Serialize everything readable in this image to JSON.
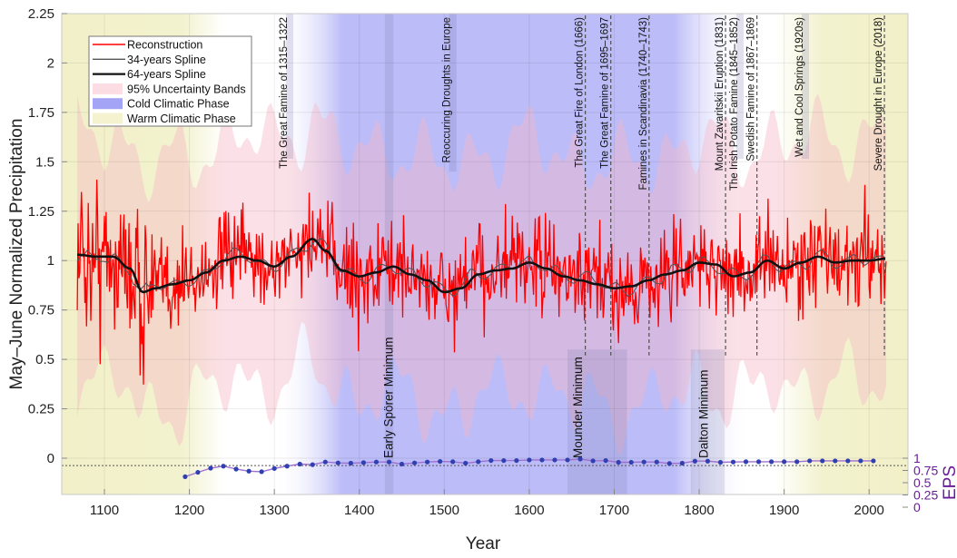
{
  "chart_data": {
    "type": "line",
    "title": "",
    "xlabel": "Year",
    "ylabel": "May–June Normalized Precipitation",
    "y2label": "EPS",
    "xlim": [
      1060,
      2055
    ],
    "ylim": [
      -0.18,
      2.25
    ],
    "y2lim": [
      0,
      1
    ],
    "grid": true,
    "x_ticks": [
      "1100",
      "1200",
      "1300",
      "1400",
      "1500",
      "1600",
      "1700",
      "1800",
      "1900",
      "2000"
    ],
    "y_ticks": [
      "2.25",
      "2",
      "1.75",
      "1.5",
      "1.25",
      "1",
      "0.75",
      "0.5",
      "0.25",
      "0"
    ],
    "y2_ticks": [
      "1",
      "0.75",
      "0.5",
      "0.25",
      "0"
    ],
    "legend": {
      "placement": "top-left",
      "entries": [
        {
          "label": "Reconstruction",
          "type": "line",
          "color": "#ff0000"
        },
        {
          "label": "34-years Spline",
          "type": "line",
          "color": "#555555"
        },
        {
          "label": "64-years Spline",
          "type": "line",
          "color": "#111111"
        },
        {
          "label": "95% Uncertainty Bands",
          "type": "patch",
          "color": "#fbdde3"
        },
        {
          "label": "Cold Climatic Phase",
          "type": "patch",
          "color": "#9a9af5"
        },
        {
          "label": "Warm Climatic Phase",
          "type": "patch",
          "color": "#f4f2cf"
        }
      ]
    },
    "phases": [
      {
        "kind": "warm",
        "start": 1060,
        "end": 1230
      },
      {
        "kind": "cold",
        "start": 1300,
        "end": 1850
      },
      {
        "kind": "warm",
        "start": 1920,
        "end": 2055
      }
    ],
    "events": [
      {
        "label": "The Great Famine of 1315–1322",
        "year": 1318,
        "style": "band"
      },
      {
        "label": "Reoccuring Droughts in Europe",
        "year": 1510,
        "style": "band"
      },
      {
        "label": "The Great Fire of London (1666)",
        "year": 1666,
        "style": "dashed"
      },
      {
        "label": "The Great Famine of 1695–1697",
        "year": 1696,
        "style": "dashed"
      },
      {
        "label": "Famines in Scandinavia (1740–1743)",
        "year": 1741,
        "style": "dashed"
      },
      {
        "label": "Mount Zavaritskii Eruption (1831)",
        "year": 1831,
        "style": "dashed"
      },
      {
        "label": "The Irish Potato Famine (1845–1852)",
        "year": 1848,
        "style": "band"
      },
      {
        "label": "Swedish Famine of 1867–1869",
        "year": 1868,
        "style": "dashed"
      },
      {
        "label": "Wet and Cool Springs (1920s)",
        "year": 1925,
        "style": "band"
      },
      {
        "label": "Severe Drought in Europe (2018)",
        "year": 2018,
        "style": "dashed"
      }
    ],
    "solar_minima": [
      {
        "label": "Early Spörer Minimum",
        "start": 1430,
        "end": 1440
      },
      {
        "label": "Mounder Minimum",
        "start": 1645,
        "end": 1715
      },
      {
        "label": "Dalton Minimum",
        "start": 1790,
        "end": 1830
      }
    ],
    "spline64": {
      "x": [
        1068,
        1090,
        1110,
        1130,
        1145,
        1160,
        1180,
        1200,
        1220,
        1240,
        1260,
        1280,
        1300,
        1320,
        1345,
        1360,
        1380,
        1400,
        1420,
        1440,
        1460,
        1480,
        1500,
        1520,
        1540,
        1560,
        1580,
        1600,
        1620,
        1640,
        1660,
        1680,
        1700,
        1720,
        1740,
        1760,
        1780,
        1800,
        1820,
        1840,
        1860,
        1880,
        1900,
        1920,
        1940,
        1960,
        1980,
        2000,
        2020
      ],
      "y": [
        1.03,
        1.02,
        1.02,
        0.96,
        0.84,
        0.86,
        0.88,
        0.9,
        0.94,
        1.0,
        1.02,
        1.0,
        0.97,
        1.02,
        1.11,
        1.05,
        0.95,
        0.92,
        0.94,
        0.97,
        0.93,
        0.9,
        0.84,
        0.86,
        0.93,
        0.95,
        0.96,
        0.99,
        0.96,
        0.92,
        0.9,
        0.88,
        0.86,
        0.87,
        0.9,
        0.93,
        0.95,
        0.99,
        0.98,
        0.92,
        0.94,
        1.0,
        0.96,
        0.99,
        1.02,
        0.99,
        1.0,
        1.0,
        1.01
      ]
    },
    "eps": {
      "x": [
        1195,
        1210,
        1225,
        1240,
        1255,
        1270,
        1285,
        1300,
        1315,
        1330,
        1345,
        1360,
        1375,
        1390,
        1405,
        1420,
        1435,
        1450,
        1465,
        1480,
        1495,
        1510,
        1525,
        1540,
        1555,
        1570,
        1585,
        1600,
        1615,
        1630,
        1645,
        1660,
        1675,
        1690,
        1705,
        1720,
        1735,
        1750,
        1765,
        1780,
        1795,
        1810,
        1825,
        1840,
        1855,
        1870,
        1885,
        1900,
        1915,
        1930,
        1945,
        1960,
        1975,
        1990,
        2005
      ],
      "y": [
        0.12,
        0.27,
        0.41,
        0.48,
        0.38,
        0.31,
        0.29,
        0.4,
        0.48,
        0.55,
        0.53,
        0.62,
        0.59,
        0.58,
        0.6,
        0.62,
        0.62,
        0.55,
        0.59,
        0.62,
        0.64,
        0.63,
        0.58,
        0.63,
        0.67,
        0.67,
        0.67,
        0.69,
        0.69,
        0.69,
        0.69,
        0.72,
        0.66,
        0.67,
        0.61,
        0.61,
        0.62,
        0.62,
        0.57,
        0.58,
        0.65,
        0.65,
        0.61,
        0.62,
        0.63,
        0.63,
        0.63,
        0.63,
        0.63,
        0.66,
        0.66,
        0.66,
        0.66,
        0.66,
        0.66
      ]
    },
    "eps_threshold": 0.85,
    "reconstruction_range": [
      1068,
      2020
    ]
  }
}
